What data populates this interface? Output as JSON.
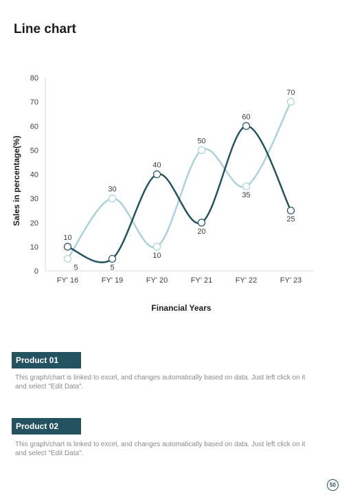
{
  "page": {
    "title": "Line chart",
    "page_number": "50"
  },
  "chart_data": {
    "type": "line",
    "categories": [
      "FY' 16",
      "FY' 19",
      "FY' 20",
      "FY' 21",
      "FY' 22",
      "FY' 23"
    ],
    "series": [
      {
        "values": [
          10,
          5,
          40,
          20,
          60,
          25
        ],
        "color": "#24525f"
      },
      {
        "values": [
          5,
          30,
          10,
          50,
          35,
          70
        ],
        "color": "#a9d3d9"
      }
    ],
    "xlabel": "Financial Years",
    "ylabel": "Sales in percentage(%)",
    "ylim": [
      0,
      80
    ],
    "yticks": [
      "0",
      "10",
      "20",
      "30",
      "40",
      "50",
      "60",
      "70",
      "80"
    ],
    "smooth": true,
    "grid": false,
    "legend": "none"
  },
  "products": [
    {
      "label": "Product 01",
      "description": "This graph/chart is linked to excel, and changes automatically based on data. Just left click on it and select \"Edit Data\"."
    },
    {
      "label": "Product 02",
      "description": "This graph/chart is linked to excel, and changes automatically based on data. Just left click on it and select \"Edit Data\"."
    }
  ]
}
